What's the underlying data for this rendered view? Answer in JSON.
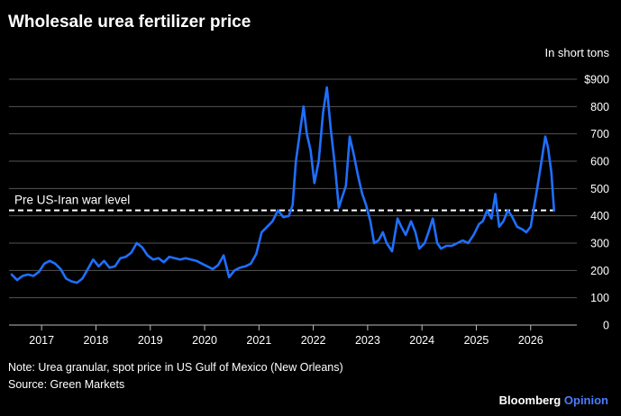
{
  "chart_data": {
    "type": "line",
    "title": "Wholesale urea fertilizer price",
    "unit_label": "In short tons",
    "ylim": [
      0,
      900
    ],
    "xlim": [
      2016.4,
      2026.85
    ],
    "grid": true,
    "y_ticks": [
      {
        "value": 900,
        "label": "$900"
      },
      {
        "value": 800,
        "label": "800"
      },
      {
        "value": 700,
        "label": "700"
      },
      {
        "value": 600,
        "label": "600"
      },
      {
        "value": 500,
        "label": "500"
      },
      {
        "value": 400,
        "label": "400"
      },
      {
        "value": 300,
        "label": "300"
      },
      {
        "value": 200,
        "label": "200"
      },
      {
        "value": 100,
        "label": "100"
      },
      {
        "value": 0,
        "label": "0"
      }
    ],
    "x_ticks": [
      {
        "value": 2017,
        "label": "2017"
      },
      {
        "value": 2018,
        "label": "2018"
      },
      {
        "value": 2019,
        "label": "2019"
      },
      {
        "value": 2020,
        "label": "2020"
      },
      {
        "value": 2021,
        "label": "2021"
      },
      {
        "value": 2022,
        "label": "2022"
      },
      {
        "value": 2023,
        "label": "2023"
      },
      {
        "value": 2024,
        "label": "2024"
      },
      {
        "value": 2025,
        "label": "2025"
      },
      {
        "value": 2026,
        "label": "2026"
      }
    ],
    "reference_line": {
      "value": 420,
      "label": "Pre US-Iran war level"
    },
    "series": [
      {
        "color": "#1f6fff",
        "points": [
          [
            2016.45,
            185
          ],
          [
            2016.55,
            165
          ],
          [
            2016.65,
            180
          ],
          [
            2016.75,
            185
          ],
          [
            2016.85,
            180
          ],
          [
            2016.95,
            195
          ],
          [
            2017.05,
            225
          ],
          [
            2017.15,
            235
          ],
          [
            2017.25,
            225
          ],
          [
            2017.35,
            205
          ],
          [
            2017.45,
            170
          ],
          [
            2017.55,
            160
          ],
          [
            2017.65,
            155
          ],
          [
            2017.75,
            170
          ],
          [
            2017.85,
            205
          ],
          [
            2017.95,
            240
          ],
          [
            2018.05,
            215
          ],
          [
            2018.15,
            235
          ],
          [
            2018.25,
            210
          ],
          [
            2018.35,
            215
          ],
          [
            2018.45,
            245
          ],
          [
            2018.55,
            250
          ],
          [
            2018.65,
            265
          ],
          [
            2018.75,
            300
          ],
          [
            2018.85,
            285
          ],
          [
            2018.95,
            255
          ],
          [
            2019.05,
            240
          ],
          [
            2019.15,
            245
          ],
          [
            2019.25,
            230
          ],
          [
            2019.35,
            250
          ],
          [
            2019.45,
            245
          ],
          [
            2019.55,
            240
          ],
          [
            2019.65,
            245
          ],
          [
            2019.75,
            240
          ],
          [
            2019.85,
            235
          ],
          [
            2019.95,
            225
          ],
          [
            2020.05,
            215
          ],
          [
            2020.15,
            205
          ],
          [
            2020.25,
            220
          ],
          [
            2020.35,
            255
          ],
          [
            2020.45,
            175
          ],
          [
            2020.55,
            200
          ],
          [
            2020.65,
            210
          ],
          [
            2020.75,
            215
          ],
          [
            2020.85,
            225
          ],
          [
            2020.95,
            260
          ],
          [
            2021.05,
            340
          ],
          [
            2021.15,
            360
          ],
          [
            2021.25,
            380
          ],
          [
            2021.35,
            420
          ],
          [
            2021.45,
            395
          ],
          [
            2021.55,
            400
          ],
          [
            2021.62,
            440
          ],
          [
            2021.68,
            600
          ],
          [
            2021.75,
            700
          ],
          [
            2021.82,
            800
          ],
          [
            2021.88,
            700
          ],
          [
            2021.95,
            640
          ],
          [
            2022.02,
            520
          ],
          [
            2022.1,
            600
          ],
          [
            2022.18,
            780
          ],
          [
            2022.25,
            870
          ],
          [
            2022.32,
            720
          ],
          [
            2022.4,
            580
          ],
          [
            2022.47,
            430
          ],
          [
            2022.55,
            480
          ],
          [
            2022.6,
            510
          ],
          [
            2022.67,
            690
          ],
          [
            2022.75,
            620
          ],
          [
            2022.82,
            550
          ],
          [
            2022.9,
            480
          ],
          [
            2022.97,
            440
          ],
          [
            2023.05,
            380
          ],
          [
            2023.12,
            300
          ],
          [
            2023.2,
            310
          ],
          [
            2023.28,
            340
          ],
          [
            2023.35,
            300
          ],
          [
            2023.45,
            270
          ],
          [
            2023.55,
            390
          ],
          [
            2023.62,
            360
          ],
          [
            2023.7,
            330
          ],
          [
            2023.8,
            380
          ],
          [
            2023.88,
            340
          ],
          [
            2023.95,
            280
          ],
          [
            2024.05,
            300
          ],
          [
            2024.12,
            340
          ],
          [
            2024.2,
            390
          ],
          [
            2024.28,
            300
          ],
          [
            2024.35,
            280
          ],
          [
            2024.45,
            290
          ],
          [
            2024.55,
            290
          ],
          [
            2024.65,
            300
          ],
          [
            2024.75,
            310
          ],
          [
            2024.85,
            300
          ],
          [
            2024.95,
            330
          ],
          [
            2025.05,
            370
          ],
          [
            2025.12,
            380
          ],
          [
            2025.2,
            420
          ],
          [
            2025.28,
            390
          ],
          [
            2025.35,
            480
          ],
          [
            2025.42,
            360
          ],
          [
            2025.5,
            380
          ],
          [
            2025.58,
            420
          ],
          [
            2025.65,
            400
          ],
          [
            2025.75,
            360
          ],
          [
            2025.85,
            350
          ],
          [
            2025.92,
            340
          ],
          [
            2026.0,
            360
          ],
          [
            2026.05,
            420
          ],
          [
            2026.12,
            500
          ],
          [
            2026.2,
            600
          ],
          [
            2026.27,
            690
          ],
          [
            2026.32,
            650
          ],
          [
            2026.38,
            560
          ],
          [
            2026.43,
            420
          ]
        ]
      }
    ]
  },
  "footer": {
    "note": "Note: Urea granular, spot price in US Gulf of Mexico (New Orleans)",
    "source": "Source: Green Markets",
    "brand_main": "Bloomberg",
    "brand_sub": "Opinion"
  },
  "colors": {
    "background": "#000000",
    "line": "#1f6fff",
    "grid": "#555555",
    "text": "#ffffff",
    "brand_accent": "#4a7dff"
  }
}
